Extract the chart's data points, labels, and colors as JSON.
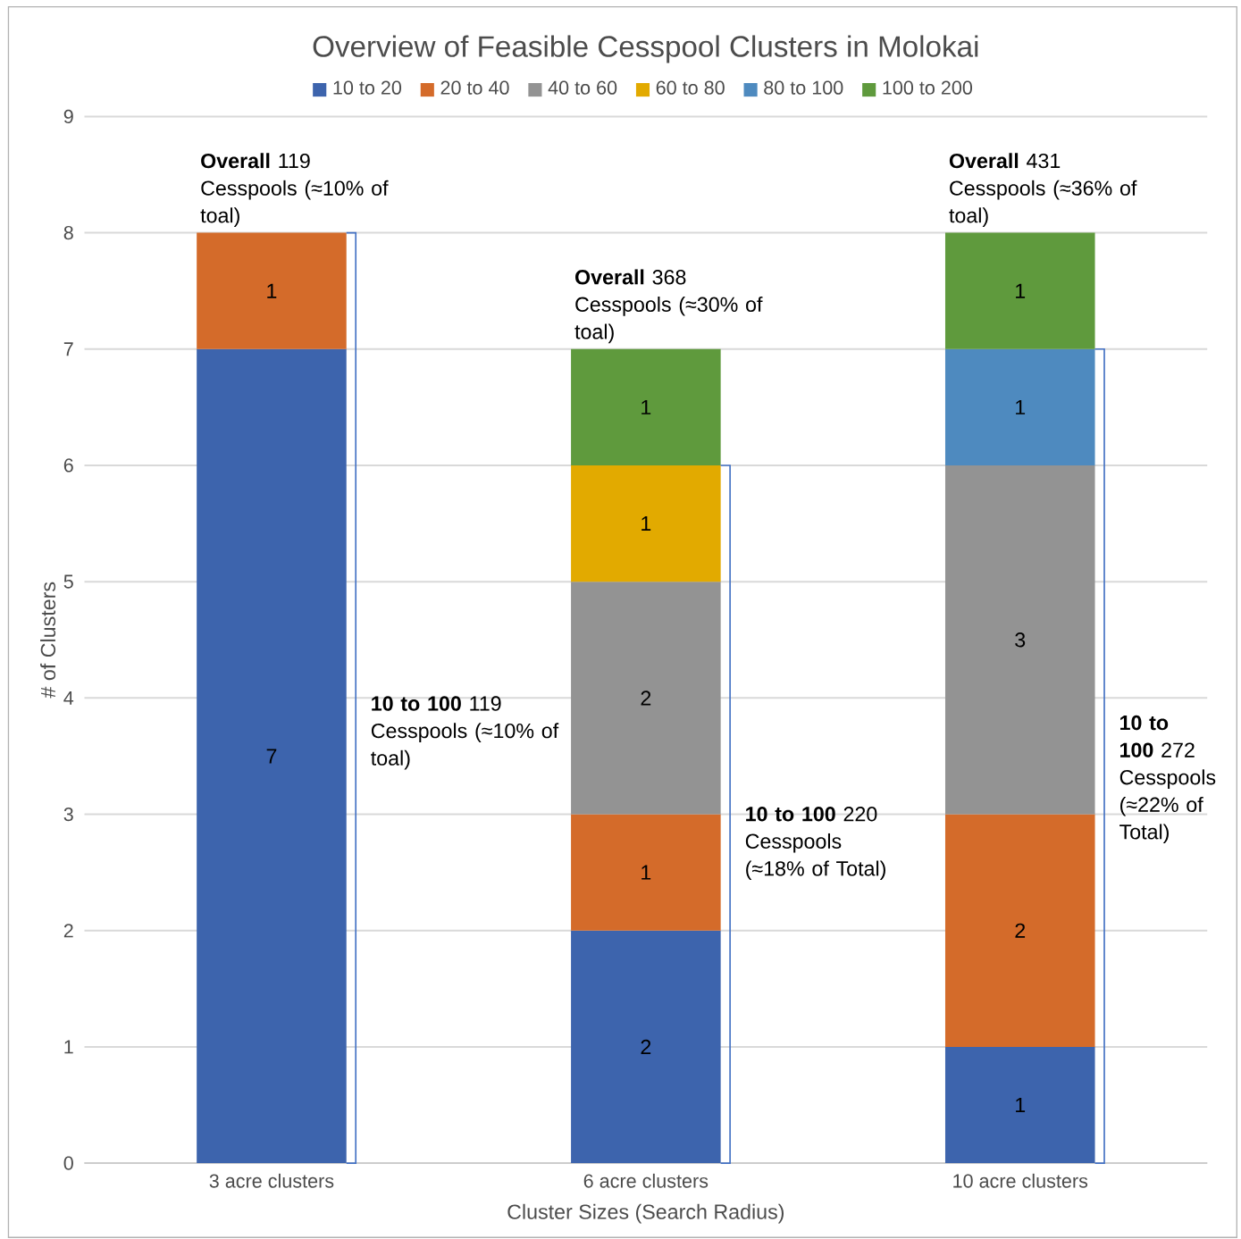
{
  "chart_data": {
    "type": "bar",
    "stacked": true,
    "title": "Overview of Feasible Cesspool Clusters in Molokai",
    "xlabel": "Cluster Sizes (Search Radius)",
    "ylabel": "# of Clusters",
    "categories": [
      "3 acre clusters",
      "6 acre clusters",
      "10 acre clusters"
    ],
    "series": [
      {
        "name": "10 to 20",
        "color": "#3d64ad",
        "values": [
          7,
          2,
          1
        ]
      },
      {
        "name": "20 to 40",
        "color": "#d46b2a",
        "values": [
          1,
          1,
          2
        ]
      },
      {
        "name": "40 to 60",
        "color": "#939393",
        "values": [
          null,
          2,
          3
        ]
      },
      {
        "name": "60 to 80",
        "color": "#e2aa00",
        "values": [
          null,
          1,
          null
        ]
      },
      {
        "name": "80 to 100",
        "color": "#4e8abf",
        "values": [
          null,
          null,
          1
        ]
      },
      {
        "name": "100 to 200",
        "color": "#5f9a3d",
        "values": [
          null,
          1,
          1
        ]
      }
    ],
    "ylim": [
      0,
      9
    ],
    "yticks": [
      0,
      1,
      2,
      3,
      4,
      5,
      6,
      7,
      8,
      9
    ],
    "grid": "y",
    "legend": "top",
    "data_labels": true,
    "annotations": [
      "**Overall** 119 Cesspools (≈10% of toal)",
      "**Overall** 368 Cesspools (≈30% of toal)",
      "**Overall** 431 Cesspools (≈36% of toal)",
      "**10 to 100** 119 Cesspools (≈10% of toal)",
      "**10 to 100** 220 Cesspools (≈18% of Total)",
      "**10 to 100** 272 Cesspools (≈22% of Total)"
    ]
  }
}
